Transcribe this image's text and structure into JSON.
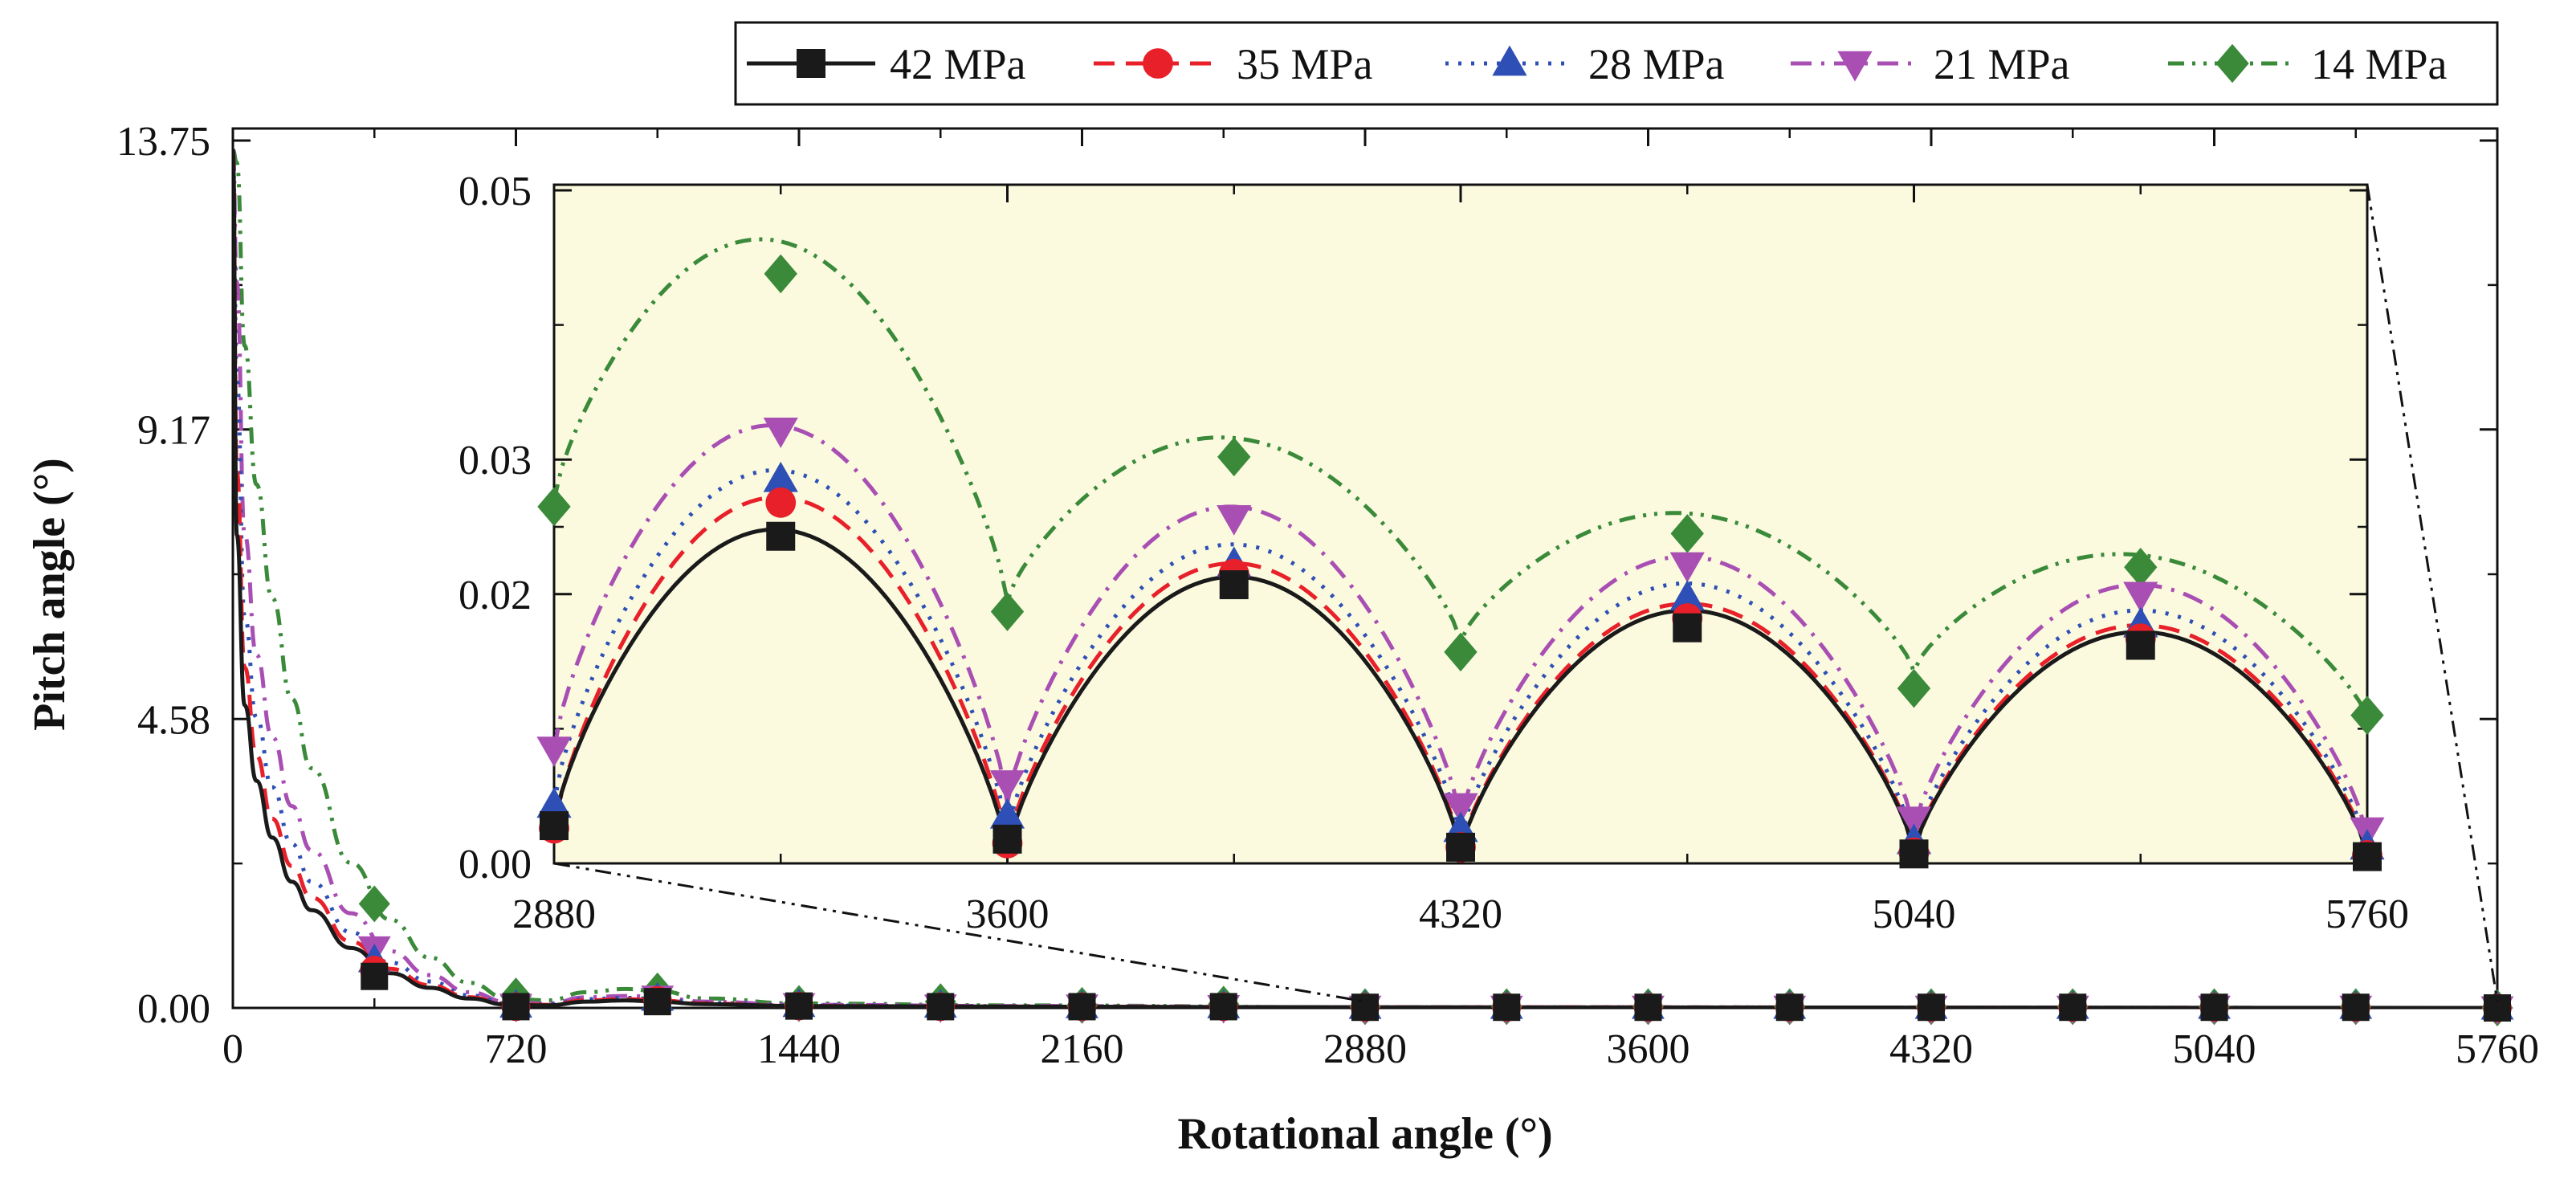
{
  "chart_data": [
    {
      "id": "main",
      "type": "line",
      "xlabel": "Rotational angle (°)",
      "ylabel": "Pitch angle (°)",
      "xlim": [
        0,
        5760
      ],
      "ylim": [
        0,
        13.75
      ],
      "x_ticks": [
        "0",
        "720",
        "1440",
        "2160",
        "2880",
        "3600",
        "4320",
        "5040",
        "5760"
      ],
      "y_ticks": [
        "0.00",
        "4.58",
        "9.17",
        "13.75"
      ],
      "legend_position": "top-right",
      "series": [
        {
          "name": "42 MPa",
          "color": "#1a1a1a",
          "dash": "solid",
          "marker": "square",
          "x": [
            0,
            10,
            30,
            60,
            100,
            150,
            200,
            300,
            400,
            500,
            600,
            700,
            800,
            900,
            1000,
            1080,
            1200,
            1440,
            2000,
            2880,
            5760
          ],
          "y": [
            13.6,
            7.5,
            4.8,
            3.6,
            2.7,
            2.0,
            1.55,
            0.95,
            0.55,
            0.32,
            0.15,
            0.05,
            0.04,
            0.1,
            0.12,
            0.1,
            0.06,
            0.03,
            0.02,
            0.01,
            0.0
          ],
          "markers_x": [
            360,
            720,
            1080,
            1440,
            1800,
            2160,
            2520,
            2880,
            3240,
            3600,
            3960,
            4320,
            4680,
            5040,
            5400,
            5760
          ],
          "markers_y": [
            0.5,
            0.02,
            0.1,
            0.03,
            0.02,
            0.02,
            0.02,
            0.01,
            0.01,
            0.01,
            0.01,
            0.01,
            0.01,
            0.01,
            0.01,
            0.0
          ]
        },
        {
          "name": "35 MPa",
          "color": "#e8202a",
          "dash": "dash",
          "marker": "circle",
          "x": [
            0,
            10,
            30,
            60,
            100,
            150,
            200,
            300,
            400,
            500,
            600,
            700,
            800,
            900,
            1000,
            1080,
            1200,
            1440,
            2000,
            2880,
            5760
          ],
          "y": [
            13.6,
            8.5,
            5.4,
            4.0,
            3.0,
            2.25,
            1.75,
            1.05,
            0.62,
            0.36,
            0.17,
            0.06,
            0.05,
            0.12,
            0.14,
            0.12,
            0.07,
            0.03,
            0.02,
            0.01,
            0.0
          ],
          "markers_x": [
            360,
            720,
            1080,
            1440,
            1800,
            2160,
            2520,
            2880,
            3240,
            3600,
            3960,
            4320,
            4680,
            5040,
            5400,
            5760
          ],
          "markers_y": [
            0.6,
            0.02,
            0.12,
            0.03,
            0.02,
            0.02,
            0.02,
            0.01,
            0.01,
            0.01,
            0.01,
            0.01,
            0.01,
            0.01,
            0.01,
            0.0
          ]
        },
        {
          "name": "28 MPa",
          "color": "#2e4fb5",
          "dash": "dot",
          "marker": "triangle-up",
          "x": [
            0,
            10,
            30,
            60,
            100,
            150,
            200,
            300,
            400,
            500,
            600,
            700,
            800,
            900,
            1000,
            1080,
            1200,
            1440,
            2000,
            2880,
            5760
          ],
          "y": [
            13.6,
            10.0,
            6.2,
            4.6,
            3.5,
            2.6,
            2.0,
            1.2,
            0.72,
            0.42,
            0.2,
            0.07,
            0.06,
            0.14,
            0.16,
            0.14,
            0.08,
            0.04,
            0.02,
            0.01,
            0.0
          ],
          "markers_x": [
            360,
            720,
            1080,
            1440,
            1800,
            2160,
            2520,
            2880,
            3240,
            3600,
            3960,
            4320,
            4680,
            5040,
            5400,
            5760
          ],
          "markers_y": [
            0.75,
            0.03,
            0.14,
            0.04,
            0.03,
            0.02,
            0.02,
            0.01,
            0.01,
            0.01,
            0.01,
            0.01,
            0.01,
            0.01,
            0.01,
            0.0
          ]
        },
        {
          "name": "21 MPa",
          "color": "#a94fb3",
          "dash": "dashdot",
          "marker": "triangle-down",
          "x": [
            0,
            10,
            30,
            60,
            100,
            150,
            200,
            300,
            400,
            500,
            600,
            700,
            800,
            900,
            1000,
            1080,
            1200,
            1440,
            2000,
            2880,
            5760
          ],
          "y": [
            13.6,
            11.5,
            7.5,
            5.6,
            4.3,
            3.2,
            2.5,
            1.5,
            0.9,
            0.52,
            0.25,
            0.09,
            0.07,
            0.17,
            0.19,
            0.17,
            0.1,
            0.05,
            0.03,
            0.01,
            0.0
          ],
          "markers_x": [
            360,
            720,
            1080,
            1440,
            1800,
            2160,
            2520,
            2880,
            3240,
            3600,
            3960,
            4320,
            4680,
            5040,
            5400,
            5760
          ],
          "markers_y": [
            0.95,
            0.04,
            0.17,
            0.05,
            0.03,
            0.03,
            0.02,
            0.01,
            0.01,
            0.01,
            0.01,
            0.01,
            0.01,
            0.01,
            0.01,
            0.0
          ]
        },
        {
          "name": "14 MPa",
          "color": "#3a8a3a",
          "dash": "dashdotdot",
          "marker": "diamond",
          "x": [
            0,
            10,
            30,
            60,
            100,
            150,
            200,
            300,
            400,
            500,
            600,
            700,
            800,
            900,
            1000,
            1080,
            1200,
            1440,
            2000,
            2880,
            5760
          ],
          "y": [
            13.6,
            13.4,
            10.5,
            8.3,
            6.5,
            4.9,
            3.8,
            2.3,
            1.4,
            0.8,
            0.4,
            0.15,
            0.12,
            0.25,
            0.3,
            0.27,
            0.15,
            0.07,
            0.04,
            0.01,
            0.0
          ],
          "markers_x": [
            360,
            720,
            1080,
            1440,
            1800,
            2160,
            2520,
            2880,
            3240,
            3600,
            3960,
            4320,
            4680,
            5040,
            5400,
            5760
          ],
          "markers_y": [
            1.65,
            0.19,
            0.27,
            0.07,
            0.1,
            0.04,
            0.06,
            0.02,
            0.02,
            0.02,
            0.02,
            0.02,
            0.02,
            0.02,
            0.02,
            0.0
          ]
        }
      ]
    },
    {
      "id": "inset",
      "type": "line",
      "xlim": [
        2880,
        5760
      ],
      "ylim": [
        0,
        0.05
      ],
      "x_ticks": [
        "2880",
        "3600",
        "4320",
        "5040",
        "5760"
      ],
      "y_ticks": [
        "0.00",
        "0.02",
        "0.03",
        "0.05"
      ],
      "background": "#fbfadf",
      "series": [
        {
          "name": "42 MPa",
          "curve": {
            "baseline": [
              0.0028,
              0.0008,
              0.0008,
              0.0008,
              0.0006
            ],
            "peaks": [
              0.0248,
              0.0213,
              0.0188,
              0.0172
            ]
          },
          "markers_x": [
            2880,
            3240,
            3600,
            3960,
            4320,
            4680,
            5040,
            5400,
            5760
          ],
          "markers_y": [
            0.0028,
            0.0243,
            0.0018,
            0.0207,
            0.0012,
            0.0175,
            0.0007,
            0.0162,
            0.0005
          ]
        },
        {
          "name": "35 MPa",
          "curve": {
            "baseline": [
              0.0025,
              0.0012,
              0.0009,
              0.0009,
              0.0008
            ],
            "peaks": [
              0.0272,
              0.0223,
              0.0193,
              0.0177
            ]
          },
          "markers_x": [
            2880,
            3240,
            3600,
            3960,
            4320,
            4680,
            5040,
            5400,
            5760
          ],
          "markers_y": [
            0.0026,
            0.0268,
            0.0015,
            0.0215,
            0.0012,
            0.0182,
            0.0008,
            0.0167,
            0.0006
          ]
        },
        {
          "name": "28 MPa",
          "curve": {
            "baseline": [
              0.0045,
              0.0022,
              0.0018,
              0.0014,
              0.0012
            ],
            "peaks": [
              0.0292,
              0.0237,
              0.0208,
              0.0188
            ]
          },
          "markers_x": [
            2880,
            3240,
            3600,
            3960,
            4320,
            4680,
            5040,
            5400,
            5760
          ],
          "markers_y": [
            0.0043,
            0.0285,
            0.0035,
            0.0222,
            0.0025,
            0.0197,
            0.0016,
            0.0177,
            0.0012
          ]
        },
        {
          "name": "21 MPa",
          "curve": {
            "baseline": [
              0.0085,
              0.0045,
              0.0032,
              0.0025,
              0.002
            ],
            "peaks": [
              0.0325,
              0.0265,
              0.0228,
              0.0207
            ]
          },
          "markers_x": [
            2880,
            3240,
            3600,
            3960,
            4320,
            4680,
            5040,
            5400,
            5760
          ],
          "markers_y": [
            0.0085,
            0.0322,
            0.006,
            0.0257,
            0.0043,
            0.0222,
            0.0033,
            0.02,
            0.0025
          ]
        },
        {
          "name": "14 MPa",
          "curve": {
            "baseline": [
              0.027,
              0.0195,
              0.0165,
              0.0143,
              0.0108
            ],
            "peaks": [
              0.0462,
              0.0316,
              0.026,
              0.0229
            ]
          },
          "markers_x": [
            2880,
            3240,
            3600,
            3960,
            4320,
            4680,
            5040,
            5400,
            5760
          ],
          "markers_y": [
            0.0265,
            0.0438,
            0.0187,
            0.0302,
            0.0157,
            0.0245,
            0.013,
            0.022,
            0.011
          ]
        }
      ]
    }
  ]
}
